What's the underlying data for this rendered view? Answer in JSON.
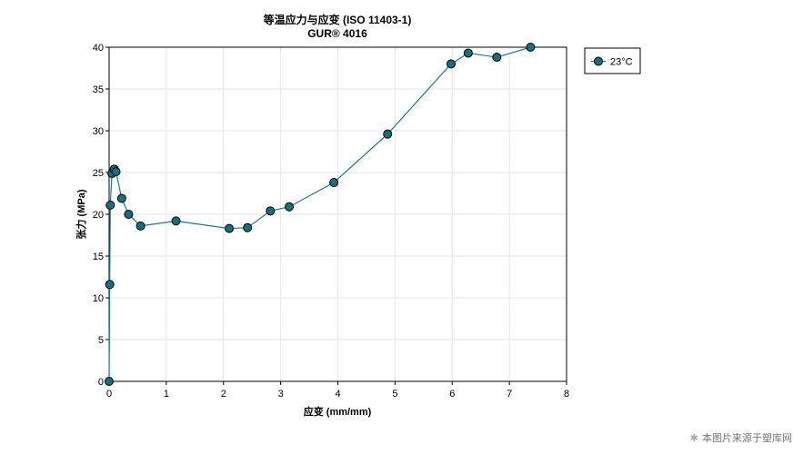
{
  "chart_data": {
    "type": "line",
    "title": "等温应力与应变 (ISO 11403-1)",
    "subtitle": "GUR® 4016",
    "xlabel": "应变 (mm/mm)",
    "ylabel": "张力 (MPa)",
    "xlim": [
      0,
      8
    ],
    "ylim": [
      0,
      40
    ],
    "xticks": [
      "0",
      "1",
      "2",
      "3",
      "4",
      "5",
      "6",
      "7",
      "8"
    ],
    "yticks": [
      "0",
      "5",
      "10",
      "15",
      "20",
      "25",
      "30",
      "35",
      "40"
    ],
    "grid": true,
    "legend_position": "right-top",
    "series": [
      {
        "name": "23°C",
        "color": "#1a7a8a",
        "marker_color": "#137080",
        "x": [
          0,
          0.01,
          0.02,
          0.05,
          0.09,
          0.12,
          0.22,
          0.34,
          0.55,
          1.17,
          2.1,
          2.42,
          2.82,
          3.15,
          3.93,
          4.87,
          5.98,
          6.28,
          6.78,
          7.37
        ],
        "y": [
          0,
          11.6,
          21.1,
          24.9,
          25.4,
          25.1,
          21.9,
          20.0,
          18.6,
          19.2,
          18.3,
          18.4,
          20.4,
          20.9,
          23.8,
          29.6,
          38.0,
          39.3,
          38.8,
          40.0
        ]
      }
    ]
  },
  "watermark": {
    "text": "本图片来源于塑库网"
  }
}
